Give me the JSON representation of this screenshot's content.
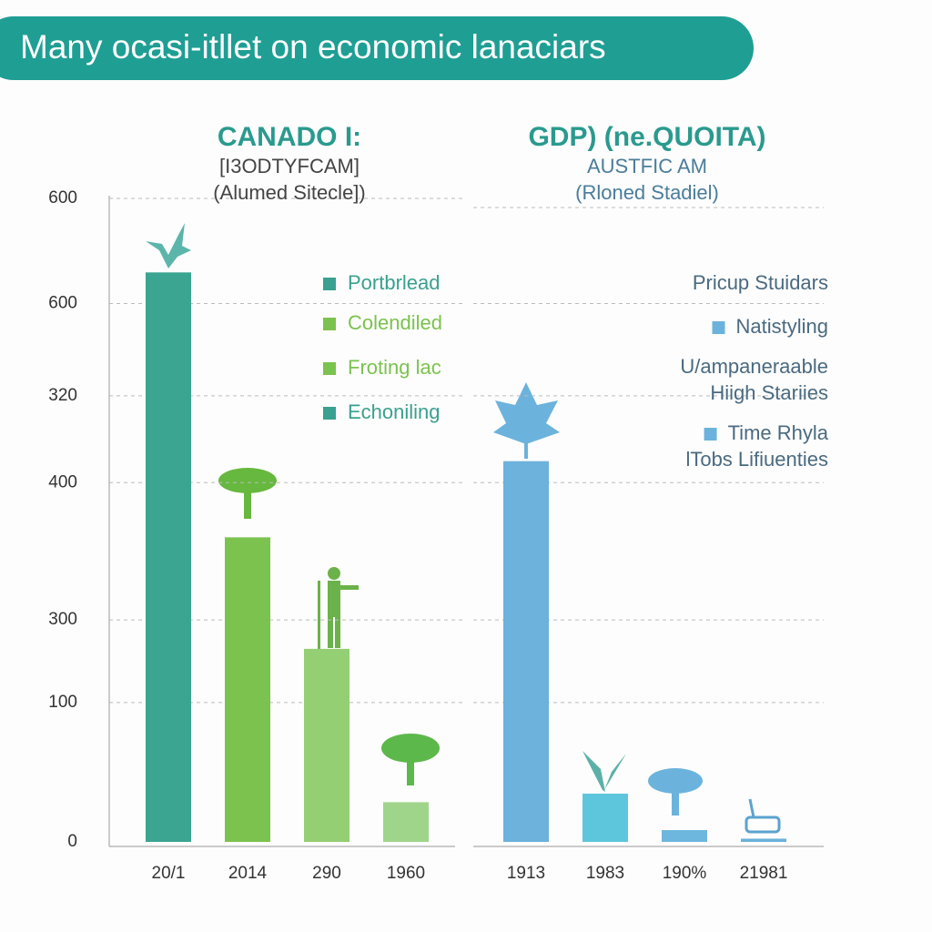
{
  "title": "Many ocasi-itllet on economic lanaciars",
  "chart_data": [
    {
      "type": "bar",
      "title": "CANADO I:",
      "subtitle": [
        "[I3ODTYFCAM]",
        "(Alumed Sitecle])"
      ],
      "categories": [
        "20/1",
        "2014",
        "290",
        "1960"
      ],
      "values": [
        531,
        284,
        180,
        37
      ],
      "colors": [
        "#3ba592",
        "#7cc24f",
        "#94cf73",
        "#9fd58a"
      ],
      "ylim": [
        0,
        600
      ],
      "yticks": [
        0,
        {
          "value": 130,
          "label": "100"
        },
        {
          "value": 207,
          "label": "300"
        },
        {
          "value": 335,
          "label": "400"
        },
        {
          "value": 416,
          "label": "320"
        },
        {
          "value": 502,
          "label": "600"
        },
        600
      ],
      "grid": true,
      "legend": [
        {
          "label": "Portbrlead",
          "color": "#3aa08f"
        },
        {
          "label": "Colendiled",
          "color": "#7cc24f"
        },
        {
          "label": "Froting lac",
          "color": "#7cc24f"
        },
        {
          "label": "Echoniling",
          "color": "#3aa08f"
        }
      ]
    },
    {
      "type": "bar",
      "title": "GDP) (ne.QUOITA)",
      "subtitle": [
        "AUSTFIC AM",
        "(Rloned  Stadiel)"
      ],
      "categories": [
        "1913",
        "1983",
        "190%",
        "21981"
      ],
      "values": [
        355,
        45,
        11,
        3
      ],
      "colors": [
        "#6cb2dc",
        "#5ec6dc",
        "#6db6de",
        "#6ab0da"
      ],
      "ylim": [
        0,
        600
      ],
      "legend": [
        {
          "label": "Pricup Stuidars"
        },
        {
          "label": "Natistyling",
          "color": "#6bb3dc"
        },
        {
          "label": "U/ampaneraable"
        },
        {
          "label": "Hiigh Stariies"
        },
        {
          "label": "Time Rhyla",
          "color": "#6bb3dc"
        },
        {
          "label": "lTobs Lifiuenties"
        }
      ]
    }
  ]
}
